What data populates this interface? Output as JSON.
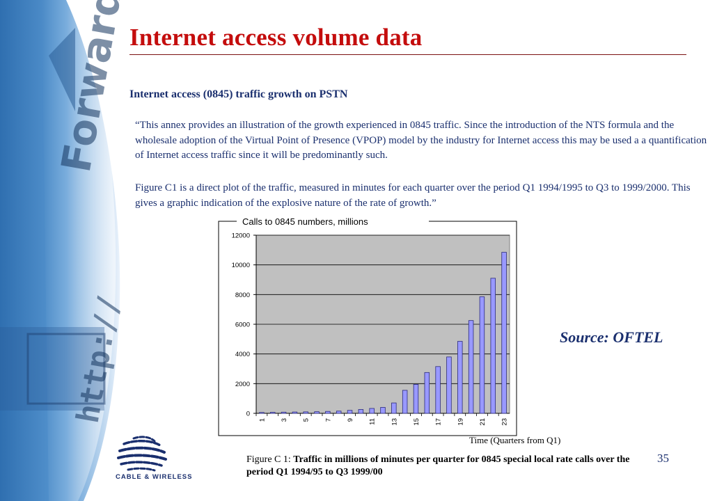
{
  "slide": {
    "title": "Internet access volume data",
    "section_heading": "Internet access (0845) traffic growth on PSTN",
    "quote_p1": "“This annex provides an illustration of the growth experienced in 0845 traffic. Since the introduction of the NTS formula and the wholesale adoption of the Virtual Point of Presence (VPOP) model by the industry for Internet access this may be used a a quantification of Internet access traffic since it will be predominantly such.",
    "quote_p2": "Figure C1 is a direct plot of the traffic, measured in minutes for each quarter over the period Q1 1994/1995 to Q3 to 1999/2000. This gives a graphic indication of the explosive nature of the rate of growth.”",
    "source": "Source:  OFTEL",
    "page_number": "35",
    "caption_label": "Figure C 1: ",
    "caption_text": "Traffic in millions of  minutes per quarter for 0845 special local rate calls over the period Q1 1994/95 to Q3 1999/00",
    "logo_text": "CABLE & WIRELESS",
    "bg_watermark": [
      "Forward",
      "http://"
    ]
  },
  "colors": {
    "title": "#c40d0d",
    "text": "#1a2f6e",
    "plot_bg": "#c0c0c0",
    "bar_fill": "#9999ff",
    "bar_stroke": "#2a2a7a",
    "bg_blue": "#3b7fc0"
  },
  "chart_data": {
    "type": "bar",
    "title": "Calls to 0845 numbers, millions",
    "xlabel": "Time (Quarters from Q1)",
    "ylabel": "",
    "ylim": [
      0,
      12000
    ],
    "yticks": [
      0,
      2000,
      4000,
      6000,
      8000,
      10000,
      12000
    ],
    "grid": true,
    "legend": "none",
    "categories": [
      "1",
      "2",
      "3",
      "4",
      "5",
      "6",
      "7",
      "8",
      "9",
      "10",
      "11",
      "12",
      "13",
      "14",
      "15",
      "16",
      "17",
      "18",
      "19",
      "20",
      "21",
      "22",
      "23"
    ],
    "tick_labels": [
      "1",
      "3",
      "5",
      "7",
      "9",
      "11",
      "13",
      "15",
      "17",
      "19",
      "21",
      "23"
    ],
    "values": [
      60,
      70,
      80,
      90,
      100,
      110,
      130,
      150,
      200,
      260,
      330,
      400,
      700,
      1550,
      1950,
      2750,
      3150,
      3800,
      4850,
      6250,
      7850,
      9100,
      10850
    ]
  }
}
